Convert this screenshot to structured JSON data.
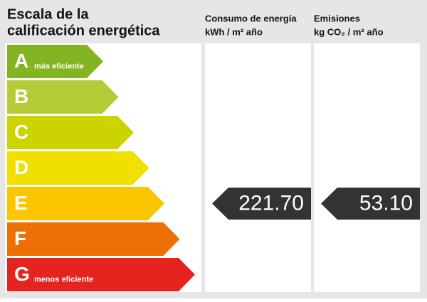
{
  "header": {
    "title_lines": [
      "Escala de la",
      "calificación energética"
    ],
    "consumption": {
      "title": "Consumo de energía",
      "unit": "kWh / m² año"
    },
    "emissions": {
      "title": "Emisiones",
      "unit": "kg CO₂ / m² año"
    }
  },
  "rows": [
    {
      "letter": "A",
      "label": "más eficiente",
      "color": "#84b421"
    },
    {
      "letter": "B",
      "color": "#b5cc36"
    },
    {
      "letter": "C",
      "color": "#cbd300"
    },
    {
      "letter": "D",
      "color": "#f0df00"
    },
    {
      "letter": "E",
      "color": "#fbc600",
      "consumption": "221.70",
      "emissions": "53.10"
    },
    {
      "letter": "F",
      "color": "#ec7004"
    },
    {
      "letter": "G",
      "label": "menos eficiente",
      "color": "#e52420"
    }
  ]
}
